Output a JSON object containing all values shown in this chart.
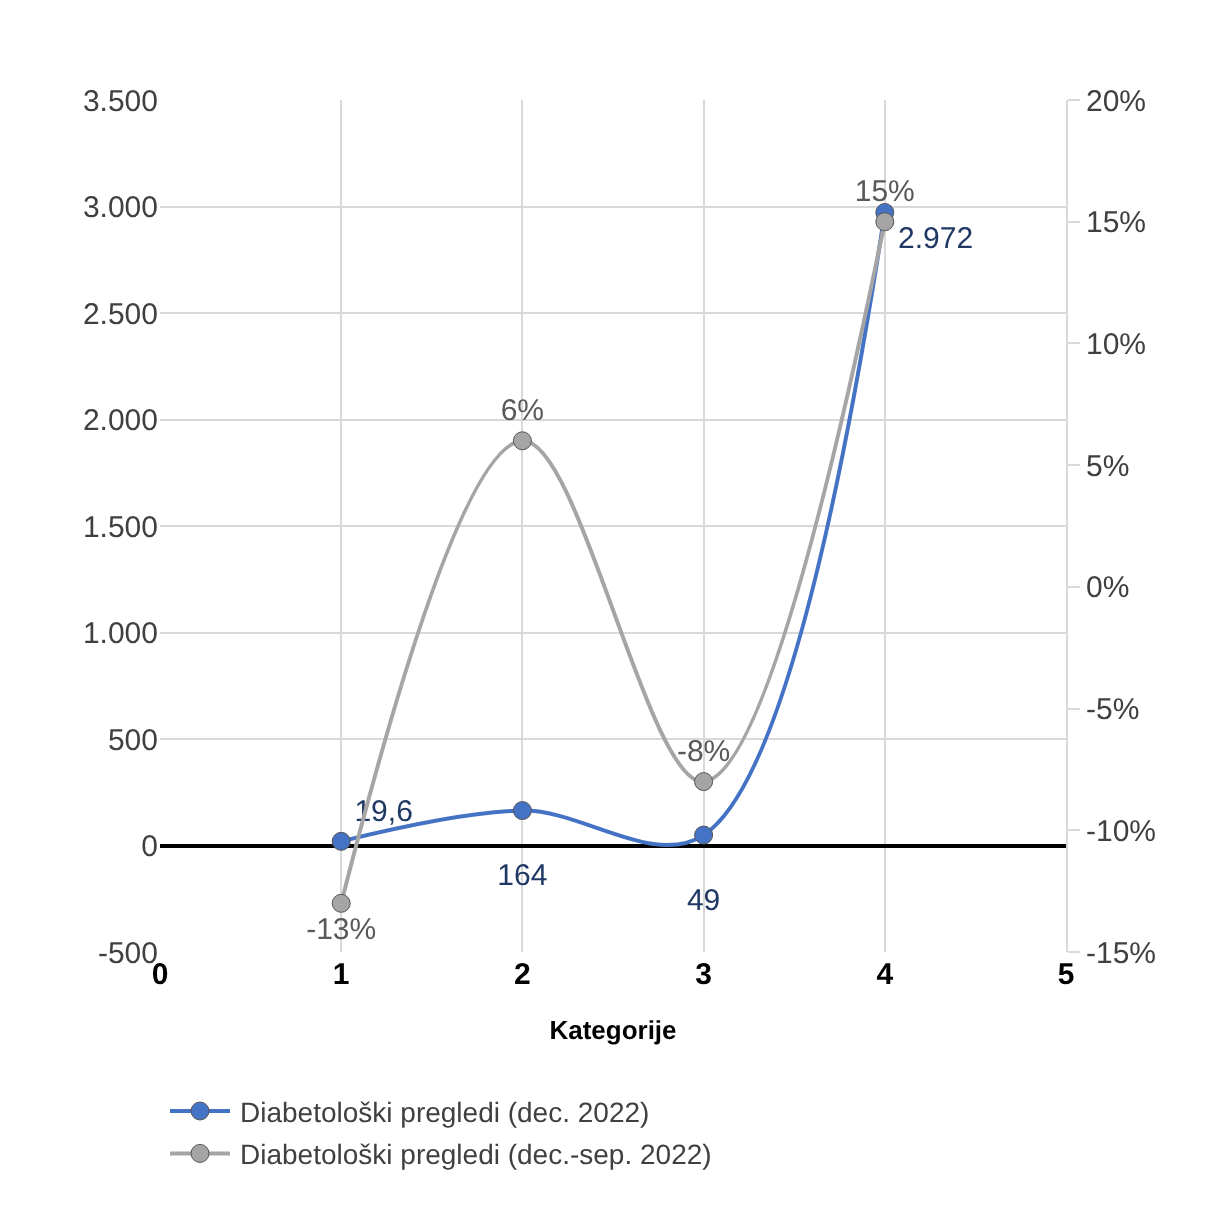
{
  "chart_data": {
    "type": "line",
    "xlabel": "Kategorije",
    "x": [
      1,
      2,
      3,
      4
    ],
    "series": [
      {
        "name": "Diabetološki pregledi (dec. 2022)",
        "color": "#4472c4",
        "values": [
          19.6,
          164,
          49,
          2972
        ],
        "value_labels": [
          "19,6",
          "164",
          "49",
          "2.972"
        ]
      },
      {
        "name": "Diabetološki pregledi (dec.-sep. 2022)",
        "color": "#a5a5a5",
        "axis": "y2",
        "values": [
          -13,
          6,
          -8,
          15
        ],
        "value_labels": [
          "-13%",
          "6%",
          "-8%",
          "15%"
        ]
      }
    ],
    "xlim": [
      0,
      5
    ],
    "xticks": [
      0,
      1,
      2,
      3,
      4,
      5
    ],
    "ylim": [
      -500,
      3500
    ],
    "yticks": [
      {
        "value": -500,
        "label": "-500"
      },
      0,
      500,
      {
        "value": 1000,
        "label": "1.000"
      },
      {
        "value": 1500,
        "label": "1.500"
      },
      {
        "value": 2000,
        "label": "2.000"
      },
      {
        "value": 2500,
        "label": "2.500"
      },
      {
        "value": 3000,
        "label": "3.000"
      },
      {
        "value": 3500,
        "label": "3.500"
      }
    ],
    "y2lim": [
      -15,
      20
    ],
    "y2ticks": [
      {
        "value": -15,
        "label": "-15%"
      },
      {
        "value": -10,
        "label": "-10%"
      },
      {
        "value": -5,
        "label": "-5%"
      },
      {
        "value": 0,
        "label": "0%"
      },
      {
        "value": 5,
        "label": "5%"
      },
      {
        "value": 10,
        "label": "10%"
      },
      {
        "value": 15,
        "label": "15%"
      },
      {
        "value": 20,
        "label": "20%"
      }
    ],
    "grid": true,
    "legend": "bottom",
    "marker": "circle",
    "line_style": "solid"
  }
}
